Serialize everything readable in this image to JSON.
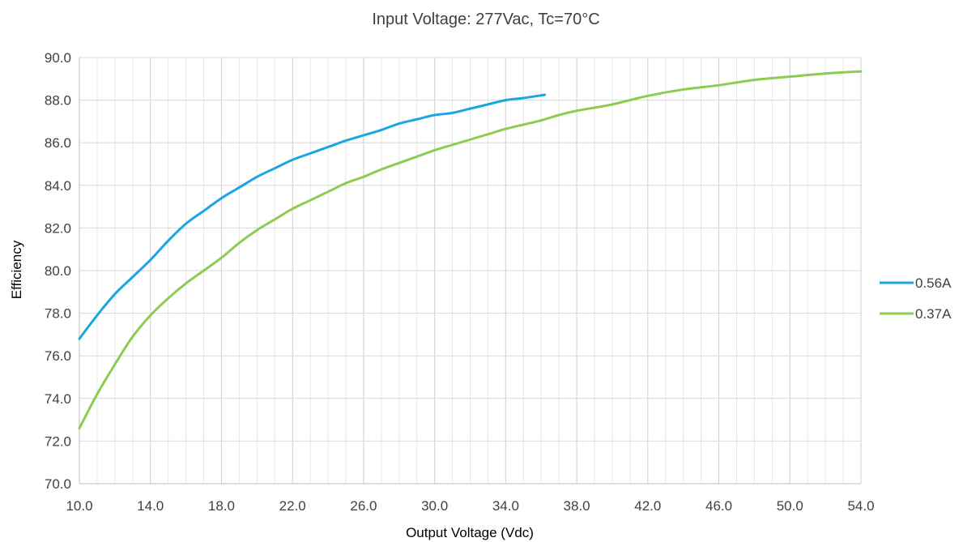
{
  "chart_data": {
    "type": "line",
    "title": "Input Voltage: 277Vac, Tc=70°C",
    "xlabel": "Output Voltage (Vdc)",
    "ylabel": "Efficiency",
    "xlim": [
      10,
      54
    ],
    "ylim": [
      70,
      90
    ],
    "x_ticks": [
      10,
      14,
      18,
      22,
      26,
      30,
      34,
      38,
      42,
      46,
      50,
      54
    ],
    "y_ticks": [
      70,
      72,
      74,
      76,
      78,
      80,
      82,
      84,
      86,
      88,
      90
    ],
    "x_tick_labels": [
      "10.0",
      "14.0",
      "18.0",
      "22.0",
      "26.0",
      "30.0",
      "34.0",
      "38.0",
      "42.0",
      "46.0",
      "50.0",
      "54.0"
    ],
    "y_tick_labels": [
      "70.0",
      "72.0",
      "74.0",
      "76.0",
      "78.0",
      "80.0",
      "82.0",
      "84.0",
      "86.0",
      "88.0",
      "90.0"
    ],
    "minor_x_step": 1,
    "grid": true,
    "legend_position": "right",
    "series": [
      {
        "name": "0.56A",
        "color": "#1aa6e0",
        "x": [
          10,
          11,
          12,
          13,
          14,
          15,
          16,
          17,
          18,
          19,
          20,
          21,
          22,
          23,
          24,
          25,
          26,
          27,
          28,
          29,
          30,
          31,
          32,
          33,
          34,
          35,
          36.2
        ],
        "y": [
          76.8,
          77.9,
          78.9,
          79.7,
          80.5,
          81.4,
          82.2,
          82.8,
          83.4,
          83.9,
          84.4,
          84.8,
          85.2,
          85.5,
          85.8,
          86.1,
          86.35,
          86.6,
          86.9,
          87.1,
          87.3,
          87.4,
          87.6,
          87.8,
          88.0,
          88.1,
          88.25
        ]
      },
      {
        "name": "0.37A",
        "color": "#8ecb52",
        "x": [
          10,
          11,
          12,
          13,
          14,
          15,
          16,
          17,
          18,
          19,
          20,
          21,
          22,
          23,
          24,
          25,
          26,
          27,
          28,
          29,
          30,
          31,
          32,
          33,
          34,
          35,
          36,
          37,
          38,
          40,
          42,
          44,
          46,
          48,
          50,
          52,
          54
        ],
        "y": [
          72.6,
          74.2,
          75.6,
          76.9,
          77.9,
          78.7,
          79.4,
          80.0,
          80.6,
          81.3,
          81.9,
          82.4,
          82.9,
          83.3,
          83.7,
          84.1,
          84.4,
          84.75,
          85.05,
          85.35,
          85.65,
          85.9,
          86.15,
          86.4,
          86.65,
          86.85,
          87.05,
          87.3,
          87.5,
          87.8,
          88.2,
          88.5,
          88.7,
          88.95,
          89.1,
          89.25,
          89.35
        ]
      }
    ]
  }
}
